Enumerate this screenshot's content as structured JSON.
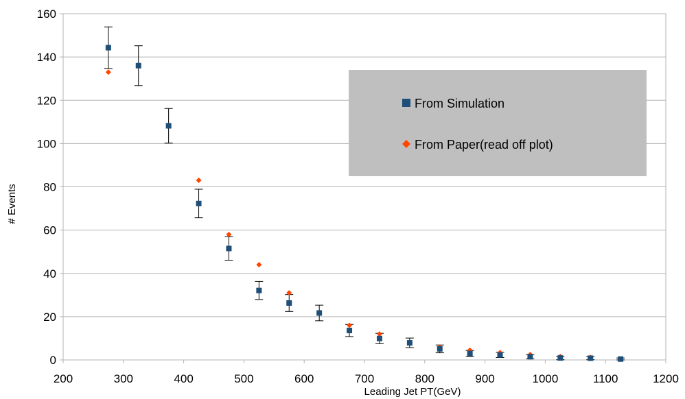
{
  "chart_data": {
    "type": "scatter",
    "title": "",
    "xlabel": "Leading Jet PT(GeV)",
    "ylabel": "# Events",
    "xlim": [
      200,
      1200
    ],
    "ylim": [
      0,
      160
    ],
    "x_ticks": [
      200,
      300,
      400,
      500,
      600,
      700,
      800,
      900,
      1000,
      1100,
      1200
    ],
    "y_ticks": [
      0,
      20,
      40,
      60,
      80,
      100,
      120,
      140,
      160
    ],
    "grid": "horizontal",
    "legend_position": "upper-right",
    "series": [
      {
        "name": "From Simulation",
        "marker": "square",
        "color": "#1f4e79",
        "x": [
          275,
          325,
          375,
          425,
          475,
          525,
          575,
          625,
          675,
          725,
          775,
          825,
          875,
          925,
          975,
          1025,
          1075,
          1125
        ],
        "y": [
          144.3,
          136,
          108.2,
          72.3,
          51.5,
          32.1,
          26.3,
          21.7,
          13.6,
          9.9,
          7.9,
          5.1,
          3.0,
          2.3,
          1.5,
          0.9,
          0.8,
          0.4
        ],
        "yerr": [
          9.6,
          9.2,
          8.0,
          6.6,
          5.4,
          4.2,
          3.9,
          3.6,
          2.8,
          2.4,
          2.2,
          1.8,
          1.4,
          1.2,
          1.0,
          0.8,
          0.7,
          0.5
        ]
      },
      {
        "name": "From Paper(read off plot)",
        "marker": "diamond",
        "color": "#ff4500",
        "x": [
          275,
          425,
          475,
          525,
          575,
          675,
          725,
          825,
          875,
          925,
          975,
          1025,
          1075
        ],
        "y": [
          133,
          83,
          58,
          44,
          31,
          16,
          12,
          6,
          4.5,
          3.4,
          2.5,
          1.6,
          1.2
        ]
      }
    ]
  }
}
